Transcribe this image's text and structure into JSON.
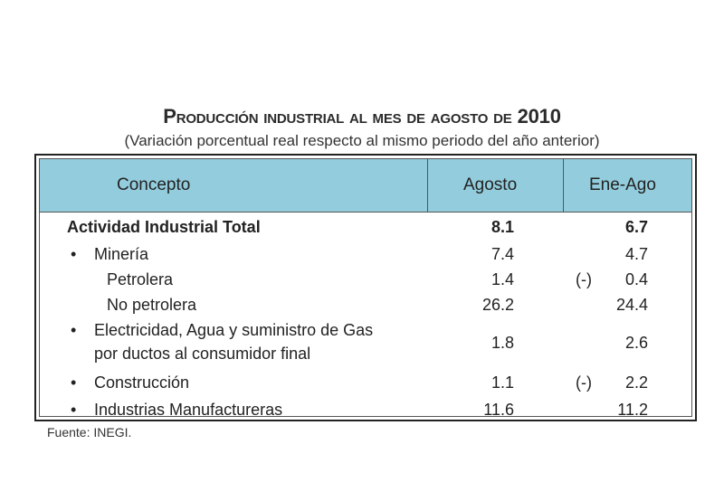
{
  "title": {
    "main": "Producción industrial al mes de agosto de",
    "year": "2010"
  },
  "subtitle": "(Variación porcentual real respecto al mismo periodo del año anterior)",
  "source": "Fuente: INEGI.",
  "chart_data": {
    "type": "table",
    "columns": [
      "Concepto",
      "Agosto",
      "Ene-Ago"
    ],
    "rows": [
      {
        "concepto": "Actividad Industrial Total",
        "agosto": "8.1",
        "eneago": "6.7",
        "eneago_prefix": ""
      },
      {
        "concepto": "Minería",
        "agosto": "7.4",
        "eneago": "4.7",
        "eneago_prefix": ""
      },
      {
        "concepto": "Petrolera",
        "agosto": "1.4",
        "eneago": "0.4",
        "eneago_prefix": "(-)"
      },
      {
        "concepto": "No petrolera",
        "agosto": "26.2",
        "eneago": "24.4",
        "eneago_prefix": ""
      },
      {
        "concepto": "Electricidad, Agua y suministro de Gas",
        "concepto_line2": "por ductos al consumidor final",
        "agosto": "1.8",
        "eneago": "2.6",
        "eneago_prefix": ""
      },
      {
        "concepto": "Construcción",
        "agosto": "1.1",
        "eneago": "2.2",
        "eneago_prefix": "(-)"
      },
      {
        "concepto": "Industrias Manufactureras",
        "agosto": "11.6",
        "eneago": "11.2",
        "eneago_prefix": ""
      }
    ],
    "colors": {
      "header_bg": "#93cddd"
    }
  }
}
